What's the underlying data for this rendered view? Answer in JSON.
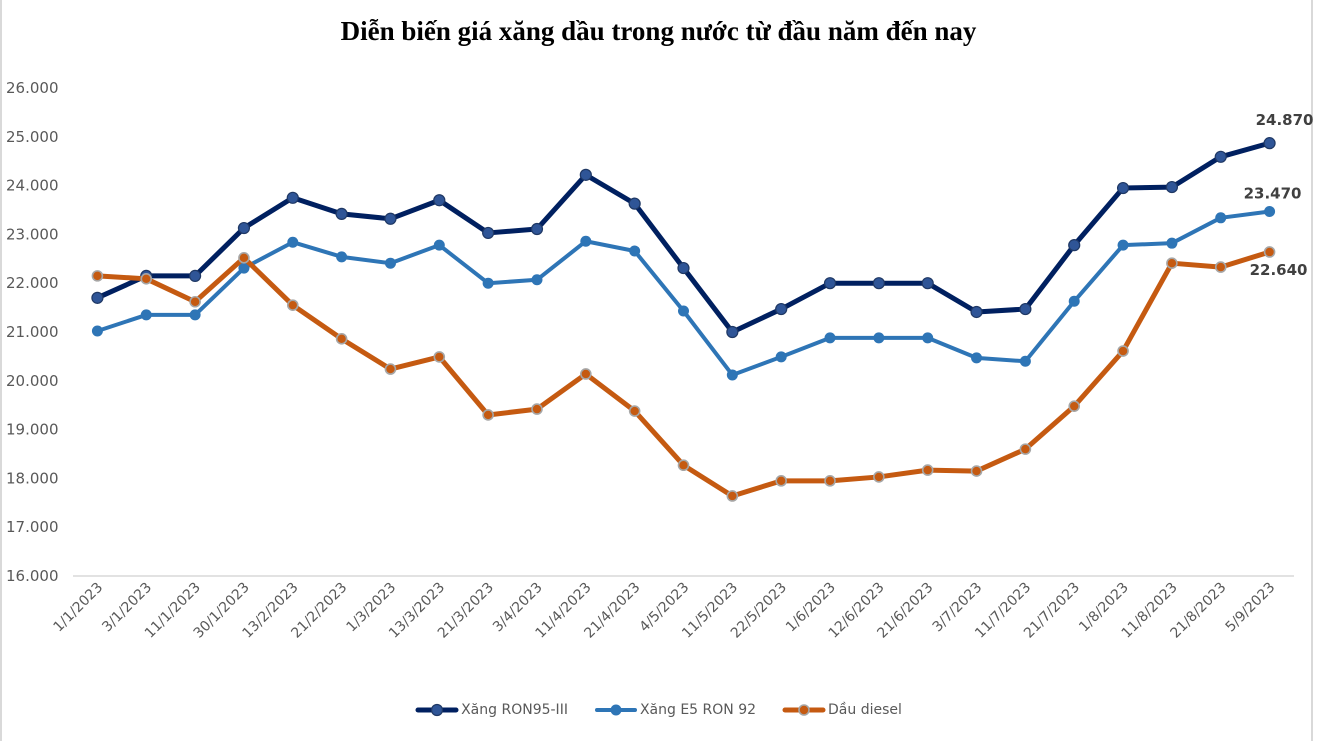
{
  "chart_data": {
    "type": "line",
    "title": "Diễn biến giá xăng dầu trong nước từ đầu năm đến nay",
    "xlabel": "",
    "ylabel": "",
    "ylim": [
      16000,
      26000
    ],
    "yticks": [
      16000,
      17000,
      18000,
      19000,
      20000,
      21000,
      22000,
      23000,
      24000,
      25000,
      26000
    ],
    "ytick_labels": [
      "16.000",
      "17.000",
      "18.000",
      "19.000",
      "20.000",
      "21.000",
      "22.000",
      "23.000",
      "24.000",
      "25.000",
      "26.000"
    ],
    "grid": false,
    "legend_position": "bottom",
    "categories": [
      "1/1/2023",
      "3/1/2023",
      "11/1/2023",
      "30/1/2023",
      "13/2/2023",
      "21/2/2023",
      "1/3/2023",
      "13/3/2023",
      "21/3/2023",
      "3/4/2023",
      "11/4/2023",
      "21/4/2023",
      "4/5/2023",
      "11/5/2023",
      "22/5/2023",
      "1/6/2023",
      "12/6/2023",
      "21/6/2023",
      "3/7/2023",
      "11/7/2023",
      "21/7/2023",
      "1/8/2023",
      "11/8/2023",
      "21/8/2023",
      "5/9/2023"
    ],
    "series": [
      {
        "name": "Xăng RON95-III",
        "color": "#002060",
        "marker_color": "#2f5597",
        "values": [
          21700,
          22150,
          22150,
          23130,
          23750,
          23420,
          23320,
          23700,
          23030,
          23110,
          24220,
          23630,
          22310,
          21000,
          21470,
          22000,
          22000,
          22000,
          21410,
          21470,
          22780,
          23950,
          23970,
          24590,
          24870
        ],
        "end_label": "24.870"
      },
      {
        "name": "Xăng E5 RON 92",
        "color": "#2e75b6",
        "marker_color": "#2e75b6",
        "values": [
          21020,
          21350,
          21350,
          22310,
          22840,
          22540,
          22410,
          22780,
          22000,
          22070,
          22860,
          22660,
          21430,
          20120,
          20490,
          20880,
          20880,
          20880,
          20470,
          20400,
          21630,
          22780,
          22820,
          23340,
          23470
        ],
        "end_label": "23.470"
      },
      {
        "name": "Dầu diesel",
        "color": "#c55a11",
        "marker_color": "#c55a11",
        "values": [
          22150,
          22090,
          21620,
          22520,
          21550,
          20860,
          20240,
          20490,
          19300,
          19420,
          20140,
          19380,
          18270,
          17640,
          17950,
          17950,
          18030,
          18170,
          18150,
          18600,
          19480,
          20610,
          22410,
          22330,
          22640
        ],
        "end_label": "22.640"
      }
    ]
  }
}
